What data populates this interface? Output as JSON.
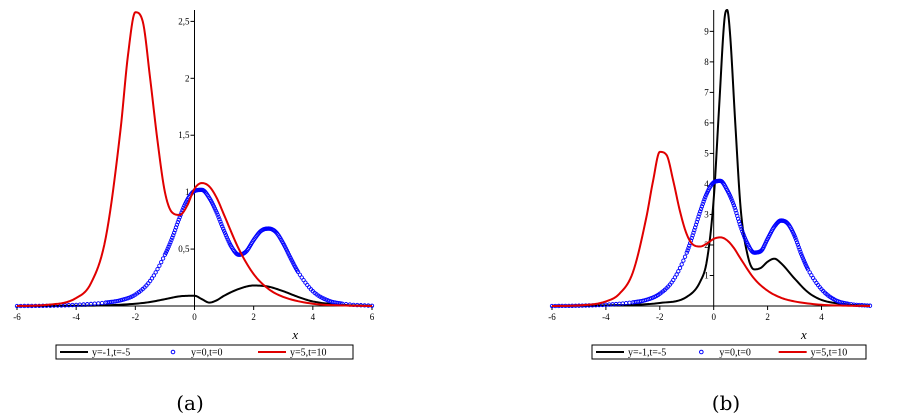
{
  "chart_data": [
    {
      "type": "line",
      "caption": "(a)",
      "xlabel": "x",
      "ylabel": "",
      "xlim": [
        -6,
        6
      ],
      "ylim": [
        0,
        2.6
      ],
      "xticks": [
        "-6",
        "-4",
        "-2",
        "0",
        "2",
        "4",
        "6"
      ],
      "yticks": [
        "0,5",
        "1",
        "1,5",
        "2",
        "2,5"
      ],
      "legend_position": "bottom",
      "series": [
        {
          "name": "y=-1,t=-5",
          "style": "solid",
          "color": "#000000",
          "x": [
            -6,
            -5,
            -4,
            -3,
            -2,
            -1.5,
            -1,
            -0.5,
            0,
            0.25,
            0.5,
            0.75,
            1,
            1.5,
            2,
            2.5,
            3,
            3.5,
            4,
            5,
            6
          ],
          "y": [
            0,
            0,
            0.002,
            0.006,
            0.02,
            0.035,
            0.06,
            0.085,
            0.09,
            0.06,
            0.03,
            0.05,
            0.09,
            0.15,
            0.18,
            0.17,
            0.13,
            0.08,
            0.04,
            0.01,
            0.002
          ]
        },
        {
          "name": "y=0,t=0",
          "style": "dots",
          "color": "#0000ff",
          "x": [
            -6,
            -5,
            -4,
            -3,
            -2.5,
            -2,
            -1.5,
            -1,
            -0.75,
            -0.5,
            -0.25,
            0,
            0.25,
            0.5,
            0.75,
            1,
            1.25,
            1.5,
            1.75,
            2,
            2.25,
            2.5,
            2.75,
            3,
            3.25,
            3.5,
            4,
            4.5,
            5,
            6
          ],
          "y": [
            0,
            0.002,
            0.01,
            0.03,
            0.05,
            0.1,
            0.22,
            0.45,
            0.6,
            0.78,
            0.93,
            1.01,
            1.02,
            0.95,
            0.82,
            0.66,
            0.52,
            0.45,
            0.48,
            0.58,
            0.66,
            0.68,
            0.65,
            0.55,
            0.42,
            0.3,
            0.13,
            0.05,
            0.02,
            0.002
          ]
        },
        {
          "name": "y=5,t=10",
          "style": "solid",
          "color": "#e00000",
          "x": [
            -6,
            -5,
            -4,
            -3.5,
            -3,
            -2.5,
            -2.25,
            -2,
            -1.75,
            -1.5,
            -1.25,
            -1,
            -0.75,
            -0.5,
            -0.25,
            0,
            0.25,
            0.5,
            0.75,
            1,
            1.5,
            2,
            2.5,
            3,
            4,
            5,
            6
          ],
          "y": [
            0,
            0.01,
            0.07,
            0.2,
            0.6,
            1.55,
            2.2,
            2.58,
            2.5,
            2.0,
            1.45,
            1.0,
            0.82,
            0.8,
            0.88,
            1.03,
            1.08,
            1.05,
            0.95,
            0.8,
            0.5,
            0.28,
            0.15,
            0.08,
            0.02,
            0.005,
            0
          ]
        }
      ]
    },
    {
      "type": "line",
      "caption": "(b)",
      "xlabel": "x",
      "ylabel": "",
      "xlim": [
        -6,
        5.8
      ],
      "ylim": [
        0,
        9.7
      ],
      "xticks": [
        "-6",
        "-4",
        "-2",
        "0",
        "2",
        "4"
      ],
      "yticks": [
        "1",
        "2",
        "3",
        "4",
        "5",
        "6",
        "7",
        "8",
        "9"
      ],
      "legend_position": "bottom",
      "series": [
        {
          "name": "y=-1,t=-5",
          "style": "solid",
          "color": "#000000",
          "x": [
            -6,
            -4,
            -2,
            -1,
            -0.5,
            -0.25,
            0,
            0.2,
            0.4,
            0.5,
            0.6,
            0.8,
            1,
            1.25,
            1.5,
            1.75,
            2,
            2.25,
            2.5,
            3,
            3.5,
            4,
            5,
            5.8
          ],
          "y": [
            0,
            0.02,
            0.1,
            0.3,
            0.8,
            1.5,
            3.5,
            6.5,
            9.4,
            9.7,
            9.0,
            6.0,
            3.2,
            1.7,
            1.2,
            1.25,
            1.45,
            1.55,
            1.4,
            0.9,
            0.45,
            0.2,
            0.05,
            0.01
          ]
        },
        {
          "name": "y=0,t=0",
          "style": "dots",
          "color": "#0000ff",
          "x": [
            -6,
            -5,
            -4,
            -3,
            -2.5,
            -2,
            -1.5,
            -1,
            -0.75,
            -0.5,
            -0.25,
            0,
            0.25,
            0.5,
            0.75,
            1,
            1.25,
            1.5,
            1.75,
            2,
            2.25,
            2.5,
            2.75,
            3,
            3.25,
            3.5,
            4,
            4.5,
            5,
            5.8
          ],
          "y": [
            0,
            0.01,
            0.04,
            0.12,
            0.2,
            0.4,
            0.85,
            1.75,
            2.4,
            3.1,
            3.7,
            4.05,
            4.1,
            3.8,
            3.3,
            2.6,
            2.05,
            1.75,
            1.8,
            2.2,
            2.6,
            2.8,
            2.7,
            2.3,
            1.7,
            1.2,
            0.55,
            0.2,
            0.07,
            0.01
          ]
        },
        {
          "name": "y=5,t=10",
          "style": "solid",
          "color": "#e00000",
          "x": [
            -6,
            -5,
            -4,
            -3.5,
            -3,
            -2.5,
            -2.25,
            -2,
            -1.75,
            -1.5,
            -1.25,
            -1,
            -0.75,
            -0.5,
            -0.25,
            0,
            0.25,
            0.5,
            0.75,
            1,
            1.5,
            2,
            2.5,
            3,
            4,
            5,
            5.8
          ],
          "y": [
            0,
            0.02,
            0.15,
            0.4,
            1.1,
            2.9,
            4.1,
            5.05,
            4.95,
            4.1,
            3.1,
            2.35,
            2.0,
            1.95,
            2.05,
            2.2,
            2.25,
            2.15,
            1.9,
            1.55,
            0.9,
            0.5,
            0.27,
            0.15,
            0.04,
            0.01,
            0
          ]
        }
      ]
    }
  ]
}
